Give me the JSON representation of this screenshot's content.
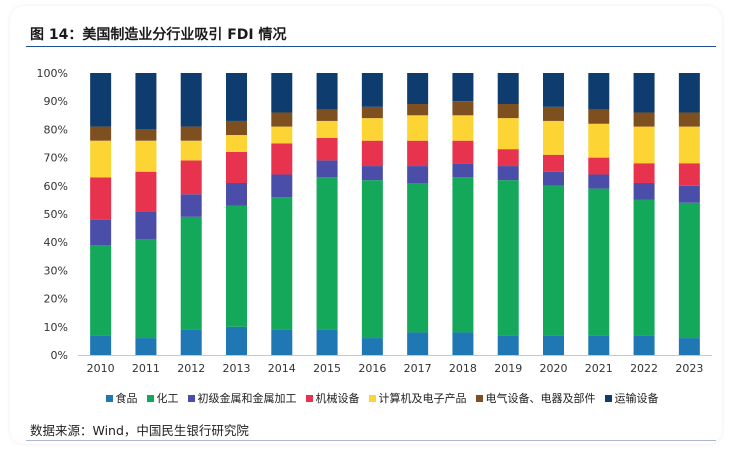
{
  "header": {
    "title": "图 14：美国制造业分行业吸引 FDI 情况"
  },
  "footer": {
    "source": "数据来源：Wind，中国民生银行研究院"
  },
  "chart_data": {
    "type": "bar",
    "stacked": true,
    "percent": true,
    "title": "图 14：美国制造业分行业吸引 FDI 情况",
    "xlabel": "",
    "ylabel": "",
    "ylim": [
      0,
      100
    ],
    "yticks": [
      "0%",
      "10%",
      "20%",
      "30%",
      "40%",
      "50%",
      "60%",
      "70%",
      "80%",
      "90%",
      "100%"
    ],
    "categories": [
      "2010",
      "2011",
      "2012",
      "2013",
      "2014",
      "2015",
      "2016",
      "2017",
      "2018",
      "2019",
      "2020",
      "2021",
      "2022",
      "2023"
    ],
    "series": [
      {
        "name": "食品",
        "color": "#1f77b4",
        "values": [
          7,
          6,
          9,
          10,
          9,
          9,
          6,
          8,
          8,
          7,
          7,
          7,
          7,
          6
        ]
      },
      {
        "name": "化工",
        "color": "#13a85a",
        "values": [
          32,
          35,
          40,
          43,
          47,
          54,
          56,
          53,
          55,
          55,
          53,
          52,
          48,
          48
        ]
      },
      {
        "name": "初级金属和金属加工",
        "color": "#4b4ea8",
        "values": [
          9,
          10,
          8,
          8,
          8,
          6,
          5,
          6,
          5,
          5,
          5,
          5,
          6,
          6
        ]
      },
      {
        "name": "机械设备",
        "color": "#e8334f",
        "values": [
          15,
          14,
          12,
          11,
          11,
          8,
          9,
          9,
          8,
          6,
          6,
          6,
          7,
          8
        ]
      },
      {
        "name": "计算机及电子产品",
        "color": "#fcd535",
        "values": [
          13,
          11,
          7,
          6,
          6,
          6,
          8,
          9,
          9,
          11,
          12,
          12,
          13,
          13
        ]
      },
      {
        "name": "电气设备、电器及部件",
        "color": "#7e5020",
        "values": [
          5,
          4,
          5,
          5,
          5,
          4,
          4,
          4,
          5,
          5,
          5,
          5,
          5,
          5
        ]
      },
      {
        "name": "运输设备",
        "color": "#0e3c6e",
        "values": [
          19,
          20,
          19,
          17,
          14,
          13,
          12,
          11,
          10,
          11,
          12,
          13,
          14,
          14
        ]
      }
    ]
  }
}
